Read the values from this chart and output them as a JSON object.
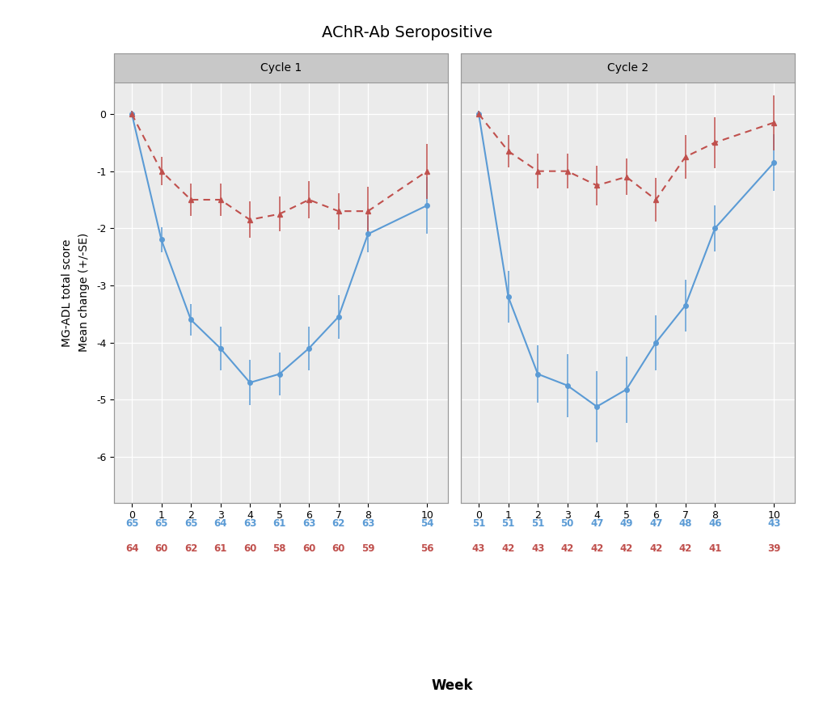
{
  "title": "AChR-Ab Seropositive",
  "xlabel": "Week",
  "ylabel": "MG-ADL total score\nMean change (+/-SE)",
  "ylim": [
    -6.8,
    0.55
  ],
  "yticks": [
    0,
    -1,
    -2,
    -3,
    -4,
    -5,
    -6
  ],
  "yticklabels": [
    "0",
    "-1",
    "-2",
    "-3",
    "-4",
    "-5",
    "-6"
  ],
  "panel_titles": [
    "Cycle 1",
    "Cycle 2"
  ],
  "weeks": [
    0,
    1,
    2,
    3,
    4,
    5,
    6,
    7,
    8,
    10
  ],
  "xtick_positions": [
    0,
    1,
    2,
    3,
    4,
    5,
    6,
    7,
    8,
    10
  ],
  "xtick_labels": [
    "0",
    "1",
    "2",
    "3",
    "4",
    "5",
    "6",
    "7",
    "8",
    "10"
  ],
  "cycle1_blue_y": [
    0.0,
    -2.2,
    -3.6,
    -4.1,
    -4.7,
    -4.55,
    -4.1,
    -3.55,
    -2.1,
    -1.6
  ],
  "cycle1_blue_se": [
    0.05,
    0.22,
    0.28,
    0.38,
    0.4,
    0.38,
    0.38,
    0.38,
    0.32,
    0.5
  ],
  "cycle1_red_y": [
    0.0,
    -1.0,
    -1.5,
    -1.5,
    -1.85,
    -1.75,
    -1.5,
    -1.7,
    -1.7,
    -1.0
  ],
  "cycle1_red_se": [
    0.05,
    0.25,
    0.28,
    0.28,
    0.32,
    0.3,
    0.32,
    0.32,
    0.42,
    0.48
  ],
  "cycle2_blue_y": [
    0.0,
    -3.2,
    -4.55,
    -4.75,
    -5.12,
    -4.82,
    -4.0,
    -3.35,
    -2.0,
    -0.85
  ],
  "cycle2_blue_se": [
    0.05,
    0.45,
    0.5,
    0.55,
    0.62,
    0.58,
    0.48,
    0.45,
    0.4,
    0.5
  ],
  "cycle2_red_y": [
    0.0,
    -0.65,
    -1.0,
    -1.0,
    -1.25,
    -1.1,
    -1.5,
    -0.75,
    -0.5,
    -0.15
  ],
  "cycle2_red_se": [
    0.05,
    0.28,
    0.3,
    0.3,
    0.35,
    0.32,
    0.38,
    0.38,
    0.45,
    0.48
  ],
  "blue_color": "#5B9BD5",
  "red_color": "#C0504D",
  "plot_bg": "#EBEBEB",
  "header_bg": "#C8C8C8",
  "header_edge": "#999999",
  "grid_color": "#FFFFFF",
  "spine_color": "#999999",
  "cycle1_blue_n": [
    "65",
    "65",
    "65",
    "64",
    "63",
    "61",
    "63",
    "62",
    "63",
    "54"
  ],
  "cycle1_red_n": [
    "64",
    "60",
    "62",
    "61",
    "60",
    "58",
    "60",
    "60",
    "59",
    "56"
  ],
  "cycle2_blue_n": [
    "51",
    "51",
    "51",
    "50",
    "47",
    "49",
    "47",
    "48",
    "46",
    "43"
  ],
  "cycle2_red_n": [
    "43",
    "42",
    "43",
    "42",
    "42",
    "42",
    "42",
    "42",
    "41",
    "39"
  ],
  "n_fontsize": 8.5,
  "tick_fontsize": 9,
  "label_fontsize": 10,
  "title_fontsize": 14
}
